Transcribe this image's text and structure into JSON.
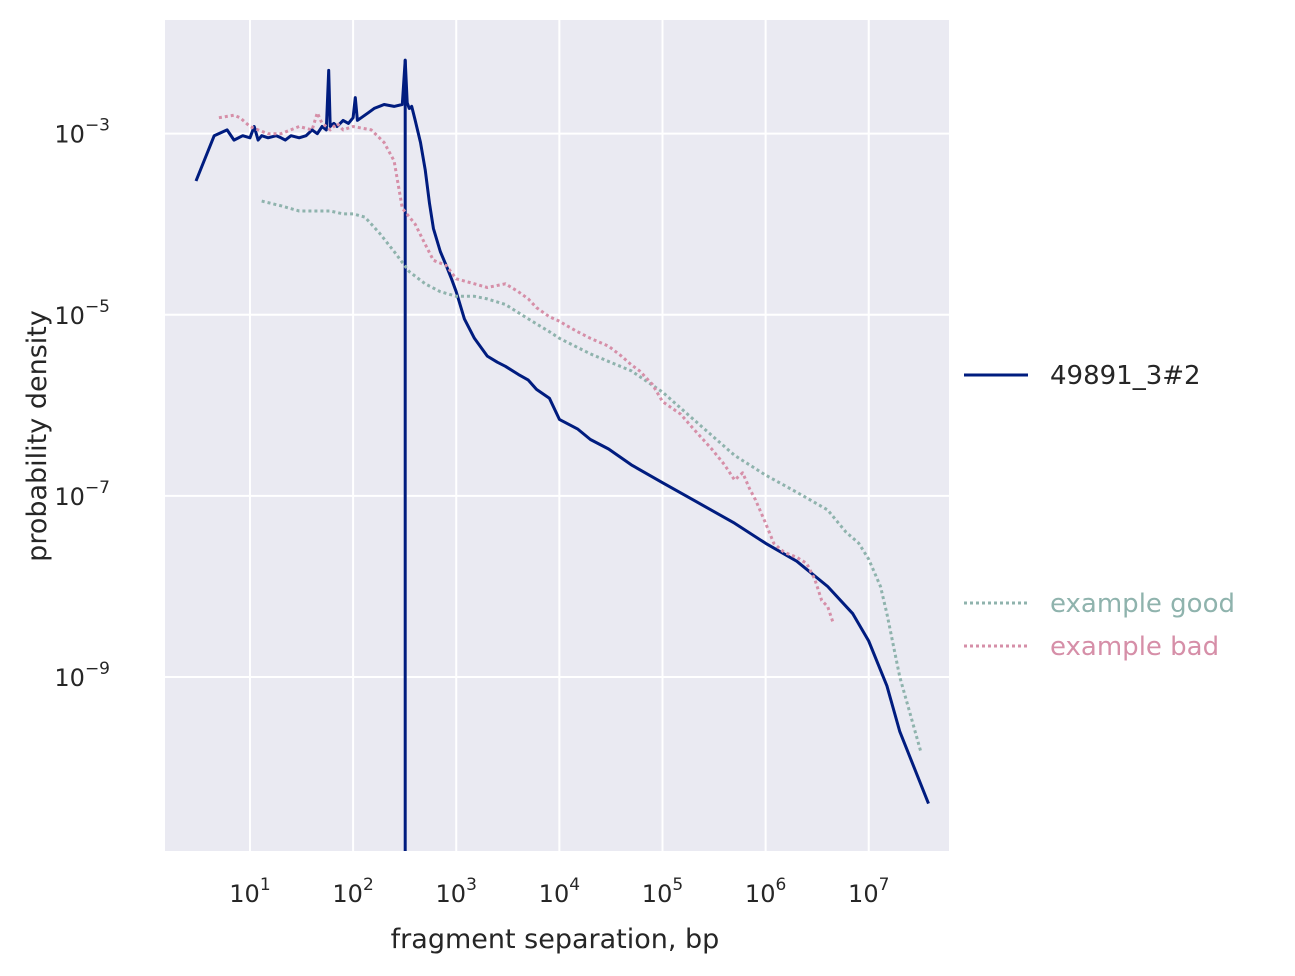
{
  "chart_data": {
    "type": "line",
    "xlabel": "fragment separation, bp",
    "ylabel": "probability density",
    "xscale": "log",
    "yscale": "log",
    "xlim": [
      1.5,
      60000000
    ],
    "ylim": [
      1.2e-11,
      0.018
    ],
    "grid": true,
    "legend_placement": "right, outside plot",
    "x_ticks": [
      {
        "base": "10",
        "exp": "1",
        "value": 10
      },
      {
        "base": "10",
        "exp": "2",
        "value": 100
      },
      {
        "base": "10",
        "exp": "3",
        "value": 1000
      },
      {
        "base": "10",
        "exp": "4",
        "value": 10000
      },
      {
        "base": "10",
        "exp": "5",
        "value": 100000
      },
      {
        "base": "10",
        "exp": "6",
        "value": 1000000
      },
      {
        "base": "10",
        "exp": "7",
        "value": 10000000
      }
    ],
    "y_ticks": [
      {
        "base": "10",
        "exp": "−3",
        "value": 0.001
      },
      {
        "base": "10",
        "exp": "−5",
        "value": 1e-05
      },
      {
        "base": "10",
        "exp": "−7",
        "value": 1e-07
      },
      {
        "base": "10",
        "exp": "−9",
        "value": 1e-09
      }
    ],
    "series": [
      {
        "name": "49891_3#2",
        "color": "#001c7f",
        "style": "solid",
        "x": [
          3,
          4.5,
          6,
          7,
          8.5,
          10,
          11,
          12,
          13,
          15,
          18,
          20,
          22,
          25,
          30,
          35,
          40,
          45,
          50,
          55,
          58,
          60,
          65,
          70,
          80,
          90,
          100,
          105,
          110,
          120,
          140,
          160,
          200,
          250,
          300,
          320,
          335,
          350,
          370,
          400,
          450,
          500,
          550,
          600,
          700,
          800,
          900,
          1000,
          1200,
          1500,
          2000,
          2500,
          3000,
          4000,
          5000,
          6000,
          8000,
          10000,
          15000,
          20000,
          30000,
          50000,
          100000,
          200000,
          500000,
          1000000,
          2000000,
          4000000,
          7000000,
          10000000,
          15000000,
          20000000,
          38000000
        ],
        "y": [
          0.0003,
          0.00095,
          0.0011,
          0.00085,
          0.00095,
          0.0009,
          0.0012,
          0.00085,
          0.00095,
          0.0009,
          0.00095,
          0.0009,
          0.00085,
          0.00095,
          0.0009,
          0.00095,
          0.0011,
          0.001,
          0.0012,
          0.0011,
          0.005,
          0.0012,
          0.0013,
          0.0012,
          0.0014,
          0.0013,
          0.0015,
          0.0025,
          0.0014,
          0.0015,
          0.0017,
          0.0019,
          0.0021,
          0.002,
          0.0021,
          0.0065,
          0.0022,
          0.0019,
          0.002,
          0.0014,
          0.0008,
          0.0004,
          0.00017,
          9e-05,
          5e-05,
          3.5e-05,
          2.5e-05,
          1.8e-05,
          9e-06,
          5.5e-06,
          3.5e-06,
          3e-06,
          2.7e-06,
          2.2e-06,
          1.9e-06,
          1.5e-06,
          1.2e-06,
          7e-07,
          5.5e-07,
          4.2e-07,
          3.3e-07,
          2.2e-07,
          1.4e-07,
          9e-08,
          5e-08,
          3e-08,
          1.9e-08,
          1e-08,
          5e-09,
          2.5e-09,
          8e-10,
          2.5e-10,
          4e-11
        ]
      },
      {
        "name": "49891_3#2 (drop)",
        "color": "#001c7f",
        "style": "solid",
        "x": [
          320,
          320
        ],
        "y": [
          0.0065,
          1.2e-11
        ]
      },
      {
        "name": "example good",
        "color": "#8fb3ad",
        "style": "dotted",
        "x": [
          13,
          20,
          30,
          40,
          50,
          60,
          80,
          100,
          130,
          180,
          250,
          350,
          500,
          700,
          1000,
          1500,
          2000,
          3000,
          5000,
          8000,
          10000,
          20000,
          50000,
          100000,
          200000,
          500000,
          1000000,
          2000000,
          4000000,
          6000000,
          8000000,
          10000000,
          13000000,
          15000000,
          20000000,
          32000000
        ],
        "y": [
          0.00018,
          0.00016,
          0.00014,
          0.00014,
          0.00014,
          0.00014,
          0.00013,
          0.00013,
          0.00012,
          8e-05,
          5e-05,
          3e-05,
          2.2e-05,
          1.8e-05,
          1.6e-05,
          1.6e-05,
          1.5e-05,
          1.3e-05,
          9e-06,
          6.5e-06,
          5.5e-06,
          3.7e-06,
          2.4e-06,
          1.4e-06,
          7e-07,
          2.8e-07,
          1.7e-07,
          1.1e-07,
          7e-08,
          4e-08,
          3e-08,
          2e-08,
          1e-08,
          5e-09,
          1e-09,
          1.5e-10
        ]
      },
      {
        "name": "example bad",
        "color": "#d68fa8",
        "style": "dotted",
        "x": [
          5,
          7,
          8,
          10,
          12,
          15,
          20,
          30,
          40,
          45,
          50,
          55,
          60,
          70,
          80,
          100,
          150,
          200,
          250,
          300,
          400,
          500,
          600,
          800,
          1000,
          1500,
          2000,
          3000,
          4000,
          5000,
          6000,
          8000,
          10000,
          12000,
          15000,
          20000,
          30000,
          40000,
          50000,
          60000,
          80000,
          100000,
          150000,
          200000,
          300000,
          400000,
          500000,
          600000,
          700000,
          800000,
          1000000,
          1200000,
          1500000,
          2000000,
          2500000,
          3000000,
          3500000,
          4000000,
          4500000
        ],
        "y": [
          0.0015,
          0.0016,
          0.0015,
          0.0012,
          0.0011,
          0.001,
          0.001,
          0.0012,
          0.0011,
          0.0017,
          0.0013,
          0.0012,
          0.0011,
          0.0013,
          0.0011,
          0.0012,
          0.0011,
          0.0008,
          0.0005,
          0.00015,
          0.0001,
          6e-05,
          4e-05,
          3.5e-05,
          2.5e-05,
          2.2e-05,
          2e-05,
          2.2e-05,
          1.8e-05,
          1.5e-05,
          1.2e-05,
          9.5e-06,
          8.5e-06,
          7.5e-06,
          6.5e-06,
          5.5e-06,
          4.5e-06,
          3.5e-06,
          2.8e-06,
          2.4e-06,
          1.7e-06,
          1.1e-06,
          8e-07,
          5.5e-07,
          3.3e-07,
          2.2e-07,
          1.5e-07,
          1.8e-07,
          1.2e-07,
          9e-08,
          5e-08,
          3e-08,
          2.4e-08,
          2.1e-08,
          1.8e-08,
          1.2e-08,
          7e-09,
          6e-09,
          4e-09
        ]
      }
    ],
    "legend": [
      {
        "label": "49891_3#2",
        "color": "#001c7f",
        "style": "solid"
      },
      {
        "label": "example good",
        "color": "#8fb3ad",
        "style": "dotted"
      },
      {
        "label": "example bad",
        "color": "#d68fa8",
        "style": "dotted"
      }
    ],
    "colors": {
      "plot_background": "#eaeaf2",
      "grid": "#ffffff",
      "text": "#262626"
    }
  }
}
